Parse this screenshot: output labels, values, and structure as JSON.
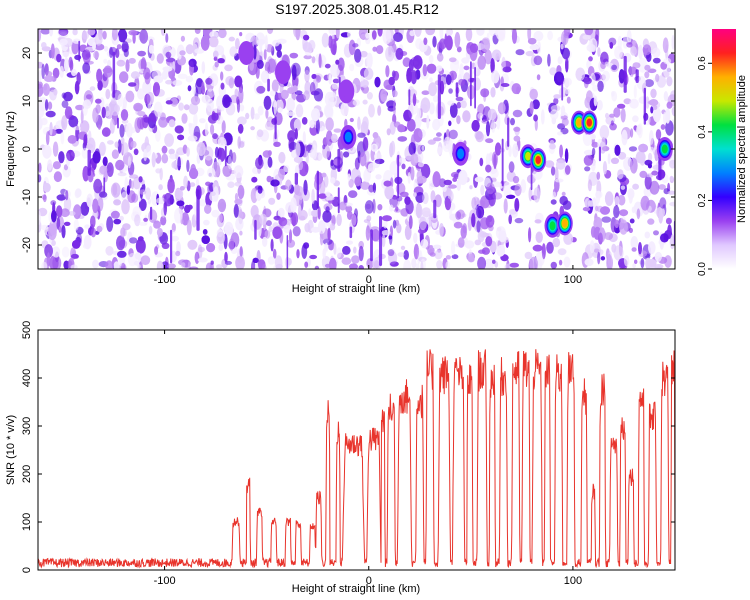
{
  "title": "S197.2025.308.01.45.R12",
  "chart_data": [
    {
      "type": "heatmap",
      "xlabel": "Height of straight line (km)",
      "ylabel": "Frequency (Hz)",
      "xlim": [
        -162,
        150
      ],
      "ylim": [
        -25,
        25
      ],
      "xticks": [
        -100,
        0,
        100
      ],
      "yticks": [
        -20,
        -10,
        0,
        10,
        20
      ],
      "colorbar": {
        "label": "Normalized spectral amplitude",
        "range": [
          0,
          0.7
        ],
        "ticks": [
          0.0,
          0.2,
          0.4,
          0.6
        ],
        "colors": [
          "#ffffff",
          "#e0c8ff",
          "#9a40f0",
          "#3300ff",
          "#0080ff",
          "#00e0d0",
          "#00e040",
          "#c8e800",
          "#ffb000",
          "#ff2020",
          "#ff0080"
        ]
      },
      "hotspots": [
        {
          "x": -60,
          "y": 20,
          "value": 0.15
        },
        {
          "x": -42,
          "y": 16,
          "value": 0.1
        },
        {
          "x": -10,
          "y": 2.5,
          "value": 0.3
        },
        {
          "x": -11,
          "y": 12,
          "value": 0.1
        },
        {
          "x": 45,
          "y": -1,
          "value": 0.3
        },
        {
          "x": 78,
          "y": -1.5,
          "value": 0.5
        },
        {
          "x": 83,
          "y": -2.3,
          "value": 0.6
        },
        {
          "x": 90,
          "y": -16,
          "value": 0.4
        },
        {
          "x": 96,
          "y": -15.5,
          "value": 0.55
        },
        {
          "x": 103,
          "y": 5.5,
          "value": 0.55
        },
        {
          "x": 108,
          "y": 5.5,
          "value": 0.6
        },
        {
          "x": 145,
          "y": 0,
          "value": 0.45
        }
      ],
      "gaps": [
        {
          "from": -62,
          "to": -57
        },
        {
          "from": 74,
          "to": 78
        },
        {
          "from": 84,
          "to": 88
        },
        {
          "from": 98,
          "to": 106
        }
      ]
    },
    {
      "type": "line",
      "xlabel": "Height of straight line (km)",
      "ylabel": "SNR (10 * v/v)",
      "xlim": [
        -162,
        150
      ],
      "ylim": [
        0,
        500
      ],
      "xticks": [
        -100,
        0,
        100
      ],
      "yticks": [
        0,
        100,
        200,
        300,
        400,
        500
      ],
      "color": "#e8342c",
      "baseline": 15,
      "bursts": [
        {
          "x0": -67,
          "x1": -63,
          "peak": 110
        },
        {
          "x0": -60,
          "x1": -58,
          "peak": 195
        },
        {
          "x0": -55,
          "x1": -52,
          "peak": 130
        },
        {
          "x0": -48,
          "x1": -45,
          "peak": 110
        },
        {
          "x0": -41,
          "x1": -38,
          "peak": 110
        },
        {
          "x0": -36,
          "x1": -33,
          "peak": 105
        },
        {
          "x0": -29,
          "x1": -26,
          "peak": 100
        },
        {
          "x0": -26,
          "x1": -23,
          "peak": 165
        },
        {
          "x0": -21,
          "x1": -19,
          "peak": 355
        },
        {
          "x0": -16,
          "x1": -14,
          "peak": 320
        },
        {
          "x0": -13,
          "x1": -2,
          "peak": 290
        },
        {
          "x0": -9,
          "x1": -7,
          "peak": 375
        },
        {
          "x0": -1,
          "x1": 6,
          "peak": 300
        },
        {
          "x0": 6,
          "x1": 8,
          "peak": 345
        },
        {
          "x0": 9,
          "x1": 13,
          "peak": 370
        },
        {
          "x0": 14,
          "x1": 21,
          "peak": 400
        },
        {
          "x0": 23,
          "x1": 27,
          "peak": 390
        },
        {
          "x0": 28,
          "x1": 32,
          "peak": 460
        },
        {
          "x0": 34,
          "x1": 40,
          "peak": 450
        },
        {
          "x0": 41,
          "x1": 47,
          "peak": 450
        },
        {
          "x0": 48,
          "x1": 51,
          "peak": 435
        },
        {
          "x0": 53,
          "x1": 58,
          "peak": 460
        },
        {
          "x0": 59,
          "x1": 62,
          "peak": 440
        },
        {
          "x0": 64,
          "x1": 68,
          "peak": 445
        },
        {
          "x0": 70,
          "x1": 74,
          "peak": 460
        },
        {
          "x0": 75,
          "x1": 79,
          "peak": 465
        },
        {
          "x0": 80,
          "x1": 85,
          "peak": 460
        },
        {
          "x0": 86,
          "x1": 89,
          "peak": 455
        },
        {
          "x0": 91,
          "x1": 95,
          "peak": 450
        },
        {
          "x0": 97,
          "x1": 101,
          "peak": 455
        },
        {
          "x0": 104,
          "x1": 107,
          "peak": 400
        },
        {
          "x0": 109,
          "x1": 111,
          "peak": 180
        },
        {
          "x0": 113,
          "x1": 116,
          "peak": 420
        },
        {
          "x0": 118,
          "x1": 122,
          "peak": 290
        },
        {
          "x0": 123,
          "x1": 126,
          "peak": 330
        },
        {
          "x0": 127,
          "x1": 130,
          "peak": 215
        },
        {
          "x0": 132,
          "x1": 135,
          "peak": 395
        },
        {
          "x0": 137,
          "x1": 141,
          "peak": 350
        },
        {
          "x0": 143,
          "x1": 147,
          "peak": 440
        },
        {
          "x0": 148,
          "x1": 150,
          "peak": 465
        }
      ]
    }
  ]
}
